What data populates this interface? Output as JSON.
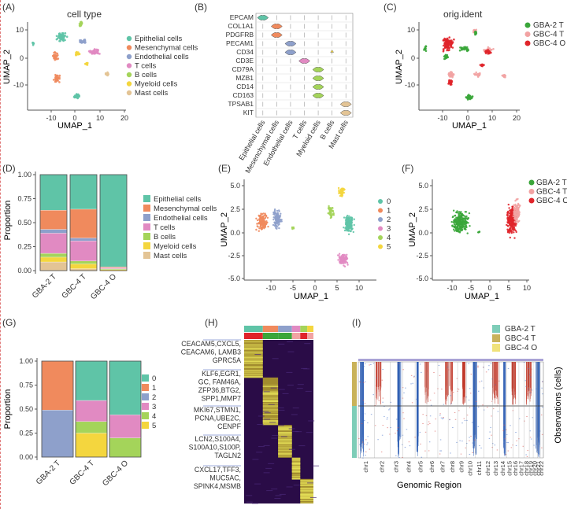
{
  "panels": [
    {
      "letter": "(A)",
      "title": "cell type",
      "xlabel": "UMAP_1",
      "ylabel": "UMAP_2"
    },
    {
      "letter": "(B)"
    },
    {
      "letter": "(C)",
      "title": "orig.ident",
      "xlabel": "UMAP_1",
      "ylabel": "UMAP_2"
    },
    {
      "letter": "(D)",
      "ylabel": "Proportion"
    },
    {
      "letter": "(E)",
      "xlabel": "UMAP_1",
      "ylabel": "UMAP_2"
    },
    {
      "letter": "(F)",
      "xlabel": "UMAP_1",
      "ylabel": "UMAP_2"
    },
    {
      "letter": "(G)",
      "ylabel": "Proportion"
    },
    {
      "letter": "(H)"
    },
    {
      "letter": "(I)",
      "xlabel": "Genomic Region",
      "ylabel": "Observations (cells)"
    }
  ],
  "colors": {
    "epithelial": "#5fc4a7",
    "mesenchymal": "#f08a5d",
    "endothelial": "#8ea0cb",
    "tcells": "#e18ac2",
    "bcells": "#a4d45a",
    "myeloid": "#f4d63e",
    "mast": "#e3c495",
    "gba2": "#3aa63a",
    "gbc4t": "#f2a3a3",
    "gbc4o": "#e0242a",
    "c0": "#5fc4a7",
    "c1": "#f08a5d",
    "c2": "#8ea0cb",
    "c3": "#e18ac2",
    "c4": "#a4d45a",
    "c5": "#f4d63e"
  },
  "celltype_legend": [
    "Epithelial cells",
    "Mesenchymal cells",
    "Endothelial cells",
    "T cells",
    "B cells",
    "Myeloid cells",
    "Mast cells"
  ],
  "celltype_keys": [
    "epithelial",
    "mesenchymal",
    "endothelial",
    "tcells",
    "bcells",
    "myeloid",
    "mast"
  ],
  "sample_legend": [
    "GBA-2 T",
    "GBC-4 T",
    "GBC-4 O"
  ],
  "sample_keys": [
    "gba2",
    "gbc4t",
    "gbc4o"
  ],
  "cluster_legend": [
    "0",
    "1",
    "2",
    "3",
    "4",
    "5"
  ],
  "cluster_keys": [
    "c0",
    "c1",
    "c2",
    "c3",
    "c4",
    "c5"
  ],
  "cnv_legend": [
    "GBA-2 T",
    "GBC-4 T",
    "GBC-4 O"
  ],
  "cnv_colors": [
    "#7ecdb8",
    "#c9b25a",
    "#f0e27a"
  ],
  "genes_B": [
    "EPCAM",
    "COL1A1",
    "PDGFRB",
    "PECAM1",
    "CD34",
    "CD3E",
    "CD79A",
    "MZB1",
    "CD14",
    "CD163",
    "TPSAB1",
    "KIT"
  ],
  "gene_markers": [
    [
      "CEACAM5,CXCL5,",
      "CEACAM6, LAMB3",
      "GPRC5A"
    ],
    [
      "KLF6,EGR1,",
      "GC, FAM46A,",
      "ZFP36,BTG2,",
      "SPP1,MMP7"
    ],
    [
      "MKI67,STMN1,",
      "PCNA,UBE2C,",
      "CENPF"
    ],
    [
      "LCN2,S100A4,",
      "S100A10,S100P,",
      "TAGLN2"
    ],
    [
      "CXCL17,TFF3,",
      "MUC5AC,",
      "SPINK4,MSMB"
    ]
  ],
  "chromosomes": [
    "chr1",
    "chr2",
    "chr3",
    "chr4",
    "chr5",
    "chr6",
    "chr7",
    "chr8",
    "chr9",
    "chr10",
    "chr11",
    "chr12",
    "chr13",
    "chr14",
    "chr15",
    "chr16",
    "chr17",
    "chr18",
    "chr19",
    "chr20",
    "chr21",
    "chr22"
  ],
  "chart_data": [
    {
      "type": "scatter",
      "title": "cell type",
      "xlabel": "UMAP_1",
      "ylabel": "UMAP_2",
      "xticks": [
        "-10",
        "0",
        "10",
        "20"
      ],
      "yticks": [
        "10",
        "0",
        "-10"
      ],
      "xlim": [
        -17,
        20
      ],
      "ylim": [
        -16,
        15
      ]
    },
    {
      "type": "violin",
      "categories": [
        "Epithelial cells",
        "Mesenchymal cells",
        "Endothelial cells",
        "T cells",
        "Myeloid cells",
        "B cells",
        "Mast cells"
      ],
      "genes": [
        "EPCAM",
        "COL1A1",
        "PDGFRB",
        "PECAM1",
        "CD34",
        "CD3E",
        "CD79A",
        "MZB1",
        "CD14",
        "CD163",
        "TPSAB1",
        "KIT"
      ]
    },
    {
      "type": "scatter",
      "title": "orig.ident",
      "xlabel": "UMAP_1",
      "ylabel": "UMAP_2",
      "xticks": [
        "-10",
        "0",
        "10",
        "20"
      ],
      "yticks": [
        "10",
        "0",
        "-10"
      ],
      "xlim": [
        -17,
        20
      ],
      "ylim": [
        -16,
        15
      ]
    },
    {
      "type": "bar",
      "stacked": true,
      "ylabel": "Proportion",
      "categories": [
        "GBA-2 T",
        "GBC-4 T",
        "GBC-4 O"
      ],
      "yticks": [
        "1.00",
        "0.75",
        "0.50",
        "0.25",
        "0.00"
      ],
      "ylim": [
        0,
        1
      ],
      "series": [
        {
          "name": "Mast cells",
          "values": [
            0.09,
            0.02,
            0.0
          ]
        },
        {
          "name": "Myeloid cells",
          "values": [
            0.05,
            0.05,
            0.01
          ]
        },
        {
          "name": "B cells",
          "values": [
            0.04,
            0.03,
            0.01
          ]
        },
        {
          "name": "T cells",
          "values": [
            0.21,
            0.21,
            0.01
          ]
        },
        {
          "name": "Endothelial cells",
          "values": [
            0.04,
            0.03,
            0.0
          ]
        },
        {
          "name": "Mesenchymal cells",
          "values": [
            0.2,
            0.3,
            0.01
          ]
        },
        {
          "name": "Epithelial cells",
          "values": [
            0.37,
            0.36,
            0.96
          ]
        }
      ]
    },
    {
      "type": "scatter",
      "xlabel": "UMAP_1",
      "ylabel": "UMAP_2",
      "xticks": [
        "-10",
        "-5",
        "0",
        "5",
        "10"
      ],
      "yticks": [
        "5.0",
        "2.5",
        "0.0",
        "-2.5",
        "-5.0"
      ],
      "xlim": [
        -13,
        11
      ],
      "ylim": [
        -5.5,
        5.3
      ]
    },
    {
      "type": "scatter",
      "xlabel": "UMAP_1",
      "ylabel": "UMAP_2",
      "xticks": [
        "-10",
        "-5",
        "0",
        "5",
        "10"
      ],
      "yticks": [
        "5.0",
        "2.5",
        "0.0",
        "-2.5",
        "-5.0"
      ],
      "xlim": [
        -13,
        11
      ],
      "ylim": [
        -5.5,
        5.3
      ]
    },
    {
      "type": "bar",
      "stacked": true,
      "ylabel": "Proportion",
      "categories": [
        "GBA-2 T",
        "GBC-4 T",
        "GBC-4 O"
      ],
      "yticks": [
        "1.00",
        "0.75",
        "0.50",
        "0.25",
        "0.00"
      ],
      "ylim": [
        0,
        1
      ],
      "series": [
        {
          "name": "5",
          "values": [
            0.0,
            0.25,
            0.0
          ]
        },
        {
          "name": "4",
          "values": [
            0.0,
            0.12,
            0.2
          ]
        },
        {
          "name": "3",
          "values": [
            0.0,
            0.22,
            0.24
          ]
        },
        {
          "name": "2",
          "values": [
            0.49,
            0.0,
            0.0
          ]
        },
        {
          "name": "1",
          "values": [
            0.51,
            0.0,
            0.0
          ]
        },
        {
          "name": "0",
          "values": [
            0.0,
            0.41,
            0.56
          ]
        }
      ]
    },
    {
      "type": "heatmap"
    },
    {
      "type": "heatmap",
      "xlabel": "Genomic Region",
      "ylabel": "Observations (cells)"
    }
  ]
}
